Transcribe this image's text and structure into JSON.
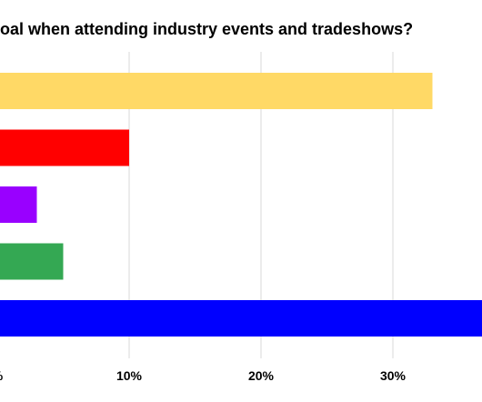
{
  "chart_data": {
    "type": "bar",
    "orientation": "horizontal",
    "title": "oal when attending industry events and tradeshows?",
    "xlabel": "",
    "ylabel": "",
    "xlim": [
      0,
      37
    ],
    "x_tick_values": [
      0,
      10,
      20,
      30
    ],
    "x_tick_labels": [
      "%",
      "10%",
      "20%",
      "30%"
    ],
    "grid": true,
    "legend": "none",
    "bars": [
      {
        "value": 33,
        "color": "#ffd966"
      },
      {
        "value": 10,
        "color": "#ff0000"
      },
      {
        "value": 3,
        "color": "#9900ff"
      },
      {
        "value": 5,
        "color": "#34a853"
      },
      {
        "value": 37,
        "color": "#0000ff"
      }
    ]
  }
}
